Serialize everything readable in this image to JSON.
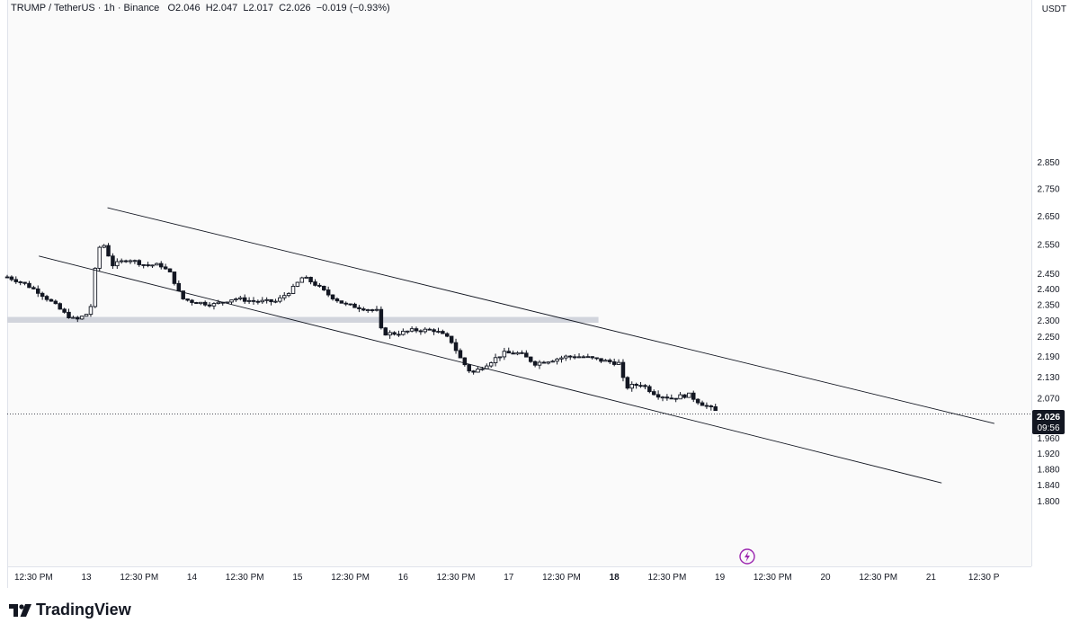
{
  "header": {
    "symbol": "TRUMP / TetherUS",
    "interval": "1h",
    "exchange": "Binance",
    "open_label": "O",
    "open": "2.046",
    "high_label": "H",
    "high": "2.047",
    "low_label": "L",
    "low": "2.017",
    "close_label": "C",
    "close": "2.026",
    "change": "−0.019 (−0.93%)"
  },
  "currency": "USDT",
  "last_price": {
    "value": "2.026",
    "countdown": "09:56"
  },
  "brand": {
    "name": "TradingView"
  },
  "colors": {
    "candle": "#131722",
    "support_zone": "#d1d4dc",
    "channel_line": "#131722",
    "flash_icon": "#9c27b0"
  },
  "icons": {
    "flash": "lightning-bolt-icon",
    "logo": "tradingview-logo-icon"
  },
  "chart_data": {
    "type": "candlestick",
    "title": "",
    "xlabel": "",
    "ylabel": "",
    "x_range": [
      12.25,
      21.95
    ],
    "y_axis": {
      "scale": "log",
      "ticks": [
        "2.850",
        "2.750",
        "2.650",
        "2.550",
        "2.450",
        "2.400",
        "2.350",
        "2.300",
        "2.250",
        "2.190",
        "2.130",
        "2.070",
        "1.960",
        "1.920",
        "1.880",
        "1.840",
        "1.800"
      ]
    },
    "x_axis": {
      "ticks": [
        {
          "x": 12.5,
          "label": "12:30 PM"
        },
        {
          "x": 13,
          "label": "13"
        },
        {
          "x": 13.5,
          "label": "12:30 PM"
        },
        {
          "x": 14,
          "label": "14"
        },
        {
          "x": 14.5,
          "label": "12:30 PM"
        },
        {
          "x": 15,
          "label": "15"
        },
        {
          "x": 15.5,
          "label": "12:30 PM"
        },
        {
          "x": 16,
          "label": "16"
        },
        {
          "x": 16.5,
          "label": "12:30 PM"
        },
        {
          "x": 17,
          "label": "17"
        },
        {
          "x": 17.5,
          "label": "12:30 PM"
        },
        {
          "x": 18,
          "label": "18"
        },
        {
          "x": 18.5,
          "label": "12:30 PM"
        },
        {
          "x": 19,
          "label": "19"
        },
        {
          "x": 19.5,
          "label": "12:30 PM"
        },
        {
          "x": 20,
          "label": "20"
        },
        {
          "x": 20.5,
          "label": "12:30 PM"
        },
        {
          "x": 21,
          "label": "21"
        },
        {
          "x": 21.5,
          "label": "12:30 P"
        }
      ]
    },
    "price_path": [
      [
        12.25,
        2.44
      ],
      [
        12.4,
        2.42
      ],
      [
        12.55,
        2.39
      ],
      [
        12.7,
        2.35
      ],
      [
        12.8,
        2.32
      ],
      [
        12.9,
        2.3
      ],
      [
        13.0,
        2.32
      ],
      [
        13.05,
        2.35
      ],
      [
        13.1,
        2.52
      ],
      [
        13.15,
        2.56
      ],
      [
        13.25,
        2.48
      ],
      [
        13.4,
        2.5
      ],
      [
        13.55,
        2.48
      ],
      [
        13.7,
        2.48
      ],
      [
        13.8,
        2.45
      ],
      [
        13.9,
        2.37
      ],
      [
        14.0,
        2.36
      ],
      [
        14.2,
        2.35
      ],
      [
        14.4,
        2.37
      ],
      [
        14.6,
        2.36
      ],
      [
        14.8,
        2.36
      ],
      [
        14.95,
        2.4
      ],
      [
        15.05,
        2.44
      ],
      [
        15.15,
        2.42
      ],
      [
        15.3,
        2.38
      ],
      [
        15.45,
        2.35
      ],
      [
        15.6,
        2.34
      ],
      [
        15.75,
        2.33
      ],
      [
        15.8,
        2.26
      ],
      [
        15.95,
        2.26
      ],
      [
        16.1,
        2.27
      ],
      [
        16.3,
        2.27
      ],
      [
        16.45,
        2.24
      ],
      [
        16.55,
        2.18
      ],
      [
        16.65,
        2.14
      ],
      [
        16.8,
        2.17
      ],
      [
        16.95,
        2.2
      ],
      [
        17.1,
        2.2
      ],
      [
        17.25,
        2.17
      ],
      [
        17.4,
        2.18
      ],
      [
        17.55,
        2.19
      ],
      [
        17.7,
        2.19
      ],
      [
        17.85,
        2.18
      ],
      [
        18.05,
        2.17
      ],
      [
        18.1,
        2.1
      ],
      [
        18.25,
        2.11
      ],
      [
        18.4,
        2.08
      ],
      [
        18.55,
        2.07
      ],
      [
        18.7,
        2.08
      ],
      [
        18.8,
        2.06
      ],
      [
        18.98,
        2.03
      ]
    ],
    "support_zone": {
      "x_start": 12.25,
      "x_end": 17.85,
      "y_low": 2.293,
      "y_high": 2.311
    },
    "channel_lines": [
      {
        "name": "upper",
        "x1": 13.2,
        "y1": 2.68,
        "x2": 21.6,
        "y2": 2.0
      },
      {
        "name": "lower",
        "x1": 12.55,
        "y1": 2.51,
        "x2": 21.1,
        "y2": 1.845
      }
    ],
    "last_price": 2.026
  }
}
